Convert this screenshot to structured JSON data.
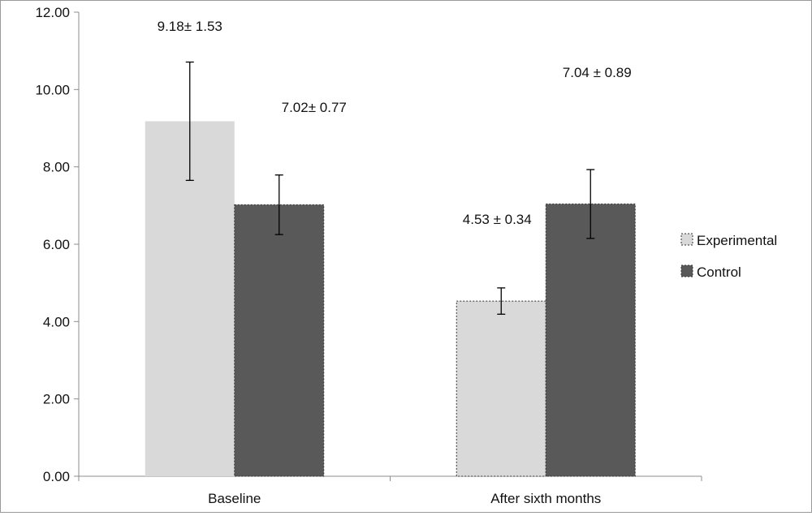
{
  "chart_data": {
    "type": "bar",
    "title": "",
    "xlabel": "",
    "ylabel": "",
    "categories": [
      "Baseline",
      "After sixth months"
    ],
    "ylim": [
      0,
      12
    ],
    "yticks": [
      "0.00",
      "2.00",
      "4.00",
      "6.00",
      "8.00",
      "10.00",
      "12.00"
    ],
    "grid": false,
    "legend_position": "right",
    "series": [
      {
        "name": "Experimental",
        "color": "#d9d9d9",
        "values": [
          9.18,
          4.53
        ],
        "errors": [
          1.53,
          0.34
        ],
        "labels": [
          "9.18± 1.53",
          "4.53 ± 0.34"
        ]
      },
      {
        "name": "Control",
        "color": "#595959",
        "values": [
          7.02,
          7.04
        ],
        "errors": [
          0.77,
          0.89
        ],
        "labels": [
          "7.02± 0.77",
          "7.04 ± 0.89"
        ]
      }
    ]
  }
}
